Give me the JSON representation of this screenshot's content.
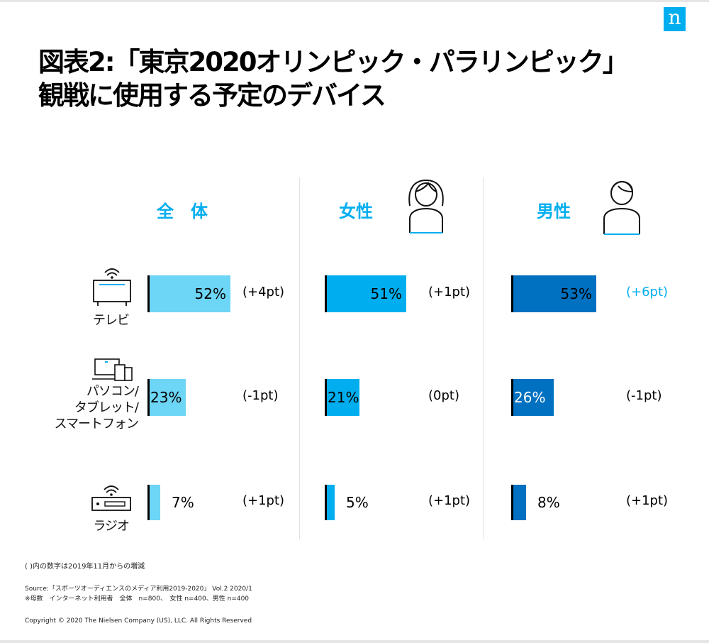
{
  "title_lines": [
    "図表2:「東京2020オリンピック・パラリンピック」",
    "観戦に使用する予定のデバイス"
  ],
  "logo": "n",
  "colors": {
    "total": "#6dd5f6",
    "female": "#00aeef",
    "male": "#0070c0",
    "accent": "#00aeef"
  },
  "chart_data": {
    "type": "bar",
    "orientation": "horizontal",
    "categories": [
      "テレビ",
      "パソコン/タブレット/スマートフォン",
      "ラジオ"
    ],
    "category_labels": [
      [
        "テレビ"
      ],
      [
        "パソコン/",
        "タブレット/",
        "スマートフォン"
      ],
      [
        "ラジオ"
      ]
    ],
    "category_icons": [
      "tv-icon",
      "devices-icon",
      "radio-icon"
    ],
    "series": [
      {
        "name": "全　体",
        "color": "#6dd5f6",
        "values": [
          52,
          23,
          7
        ],
        "value_labels": [
          "52%",
          "23%",
          "7%"
        ],
        "changes": [
          "(+4pt)",
          "(-1pt)",
          "(+1pt)"
        ]
      },
      {
        "name": "女性",
        "color": "#00aeef",
        "values": [
          51,
          21,
          5
        ],
        "value_labels": [
          "51%",
          "21%",
          "5%"
        ],
        "changes": [
          "(+1pt)",
          "(0pt)",
          "(+1pt)"
        ],
        "icon": "female-person-icon"
      },
      {
        "name": "男性",
        "color": "#0070c0",
        "values": [
          53,
          26,
          8
        ],
        "value_labels": [
          "53%",
          "26%",
          "8%"
        ],
        "changes": [
          "(+6pt)",
          "(-1pt)",
          "(+1pt)"
        ],
        "icon": "male-person-icon"
      }
    ],
    "highlighted_change": {
      "series": 2,
      "category": 0
    }
  },
  "footnotes": {
    "note": "( )内の数字は2019年11月からの増減",
    "source": "Source:「スポーツオーディエンスのメディア利用2019-2020」 Vol.2 2020/1",
    "sample": "※母数　インターネット利用者　全体　n=800、　女性 n=400、男性 n=400",
    "copyright": "Copyright © 2020 The Nielsen Company (US), LLC. All Rights Reserved"
  }
}
